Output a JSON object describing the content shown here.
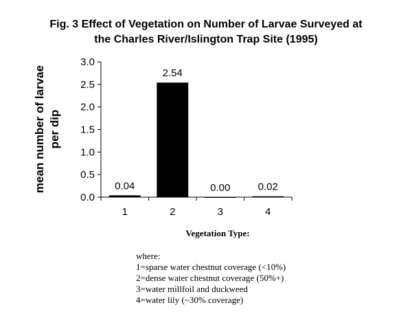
{
  "chart_data": {
    "type": "bar",
    "title": [
      "Fig. 3  Effect of Vegetation on Number of Larvae Surveyed at",
      "the Charles River/Islington Trap Site (1995)"
    ],
    "ylabel": [
      "mean number of larvae",
      "per dip"
    ],
    "xlabel": "Vegetation Type:",
    "categories": [
      "1",
      "2",
      "3",
      "4"
    ],
    "values": [
      0.04,
      2.54,
      0.0,
      0.02
    ],
    "data_labels": [
      "0.04",
      "2.54",
      "0.00",
      "0.02"
    ],
    "ylim": [
      0,
      3.0
    ],
    "yticks": [
      "0.0",
      "0.5",
      "1.0",
      "1.5",
      "2.0",
      "2.5",
      "3.0"
    ],
    "grid": false,
    "bar_color": "#000000"
  },
  "legend": {
    "heading": "where:",
    "items": [
      "1=sparse water chestnut coverage (<10%)",
      "2=dense water chestnut coverage (50%+)",
      "3=water millfoil and duckweed",
      "4=water lily (~30% coverage)"
    ]
  }
}
